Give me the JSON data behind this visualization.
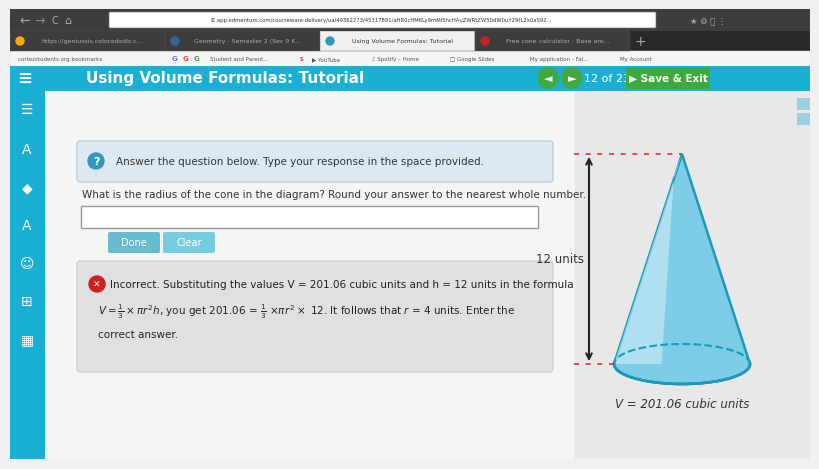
{
  "bg_color": "#f0f0f0",
  "browser_bar_color": "#3d3d3d",
  "tab_bar_color": "#292929",
  "active_tab_color": "#f0f0f0",
  "inactive_tab_color": "#3d3d3d",
  "url_bar_color": "#ffffff",
  "bookmark_bar_color": "#f5f5f5",
  "header_bg": "#1ab0d4",
  "header_text": "Using Volume Formulas: Tutorial",
  "header_text_color": "#ffffff",
  "nav_btn_color": "#3daa3d",
  "page_info": "12 of 23",
  "sidebar_color": "#1ab0d4",
  "content_bg": "#f5f5f5",
  "right_panel_bg": "#e8e8e8",
  "question_box_bg": "#dde8f0",
  "question_box_border": "#b0c8d8",
  "question_text": "Answer the question below. Type your response in the space provided.",
  "main_question": "What is the radius of the cone in the diagram? Round your answer to the nearest whole number.",
  "input_box_color": "#ffffff",
  "done_btn_color": "#66bbcc",
  "clear_btn_color": "#77ccdd",
  "error_box_bg": "#e0e0e0",
  "error_box_border": "#cccccc",
  "error_icon_color": "#cc2222",
  "error_text_line1": "Incorrect. Substituting the values V = 201.06 cubic units and h = 12 units in the formula",
  "error_text_line3": "correct answer.",
  "cone_fill_light": "#b8e8f5",
  "cone_fill_mid": "#7dcce8",
  "cone_fill_dark": "#4ab8d8",
  "cone_stroke_color": "#1a99bb",
  "cone_height_label": "12 units",
  "cone_volume_label": "V = 201.06 cubic units",
  "dotted_line_color": "#dd3333",
  "arrow_color": "#222222",
  "tab1_text": "https://geniussis.coloradodls.c...",
  "tab2_text": "Geometry - Semester 2 (Sec 9 K...",
  "tab3_text": "Using Volume Formulas: Tutorial",
  "tab4_text": "Free cone calculator - Base are...",
  "url_text": "f2.app.edmentum.com/courseware-delivery/ua/49362273/45317891/aHR0cHM6Ly9mMi5hcHAuZWRtZW50dW0uY29tL2x0aS92..."
}
